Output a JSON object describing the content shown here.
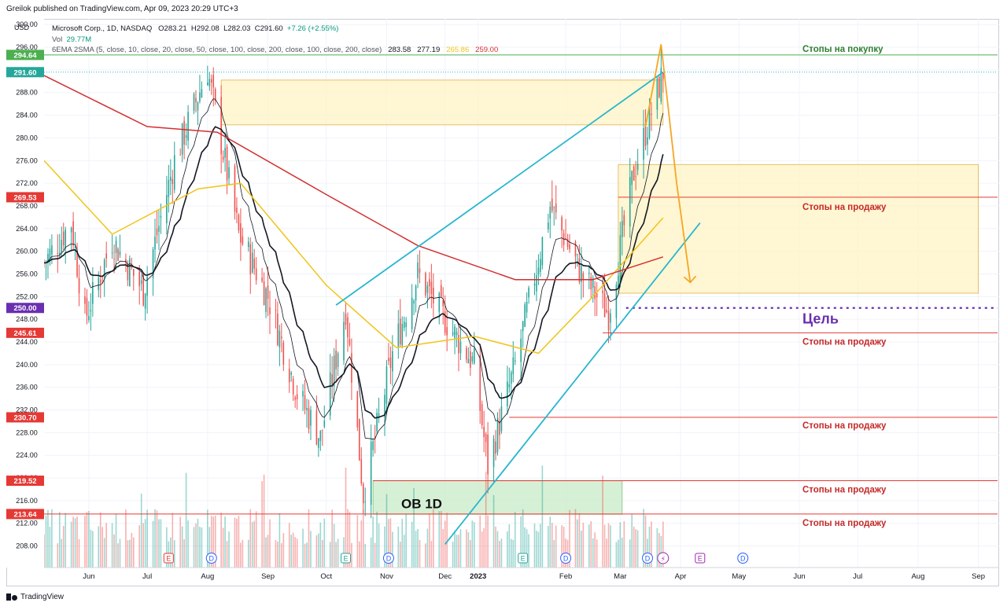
{
  "header": {
    "publisher": "Greilok published on TradingView.com, Apr 09, 2023 20:29 UTC+3"
  },
  "legend": {
    "currency": "USD",
    "symbol": "Microsoft Corp., 1D, NASDAQ",
    "ohlc": {
      "o": "O283.21",
      "h": "H292.08",
      "l": "L282.03",
      "c": "C291.60",
      "chg": "+7.26 (+2.55%)"
    },
    "vol_label": "Vol",
    "vol_value": "29.77M",
    "ma_label": "6EMA 2SMA (5, close, 10, close, 20, close, 50, close, 100, close, 200, close, 100, close, 200, close)",
    "ma_values": [
      "283.58",
      "277.19",
      "265.86",
      "259.00"
    ]
  },
  "brand": "TradingView",
  "colors": {
    "up": "#26a69a",
    "down": "#ef5350",
    "ema_fast": "#131722",
    "sma100": "#f0c419",
    "sma200": "#d32f2f",
    "channel": "#29b6cf",
    "arrow": "#f5a623",
    "target": "#6a2fb0",
    "buy_stop": "#4caf50",
    "sell_stop": "#e53935",
    "zone_yellow": "#fff3c4",
    "zone_green": "#c8ebc8"
  },
  "chart_data": {
    "type": "candlestick",
    "title": "Microsoft Corp., 1D, NASDAQ",
    "y_axis": {
      "ticks": [
        300,
        296,
        292,
        288,
        284,
        280,
        276,
        272,
        268,
        264,
        260,
        256,
        252,
        248,
        244,
        240,
        236,
        232,
        228,
        224,
        220,
        216,
        212,
        208
      ],
      "ylim": [
        206,
        301
      ]
    },
    "x_axis": {
      "labels": [
        "Jun",
        "Jul",
        "Aug",
        "Sep",
        "Oct",
        "Nov",
        "Dec",
        "2023",
        "Feb",
        "Mar",
        "Apr",
        "May",
        "Jun",
        "Jul",
        "Aug",
        "Sep"
      ]
    },
    "price_labels": [
      {
        "value": "294.64",
        "color": "#4caf50"
      },
      {
        "value": "291.60",
        "color": "#26a69a"
      },
      {
        "value": "269.53",
        "color": "#e53935"
      },
      {
        "value": "250.00",
        "color": "#6a2fb0"
      },
      {
        "value": "245.61",
        "color": "#e53935"
      },
      {
        "value": "230.70",
        "color": "#e53935"
      },
      {
        "value": "219.52",
        "color": "#e53935"
      },
      {
        "value": "213.64",
        "color": "#e53935"
      }
    ],
    "annotations": [
      {
        "text": "Стопы на покупку",
        "price": 294.64,
        "color": "#2e7d32"
      },
      {
        "text": "Стопы на продажу",
        "price": 269.53,
        "color": "#c62828"
      },
      {
        "text": "Цель",
        "price": 250.0,
        "color": "#6a2fb0"
      },
      {
        "text": "Стопы на продажу",
        "price": 245.61,
        "color": "#c62828"
      },
      {
        "text": "Стопы на продажу",
        "price": 230.7,
        "color": "#c62828"
      },
      {
        "text": "Стопы на продажу",
        "price": 219.52,
        "color": "#c62828"
      },
      {
        "text": "Стопы на продажу",
        "price": 213.64,
        "color": "#c62828"
      }
    ],
    "order_block_label": "OB 1D",
    "zones": [
      {
        "kind": "yellow",
        "from_date": "2022-08-22",
        "to_date": "2023-04-06",
        "top": 290.2,
        "bottom": 282.3
      },
      {
        "kind": "yellow",
        "from_date": "2023-03-14",
        "to_date": "2023-09-15",
        "top": 275.3,
        "bottom": 252.6
      },
      {
        "kind": "green",
        "from_date": "2022-11-08",
        "to_date": "2023-03-16",
        "top": 219.5,
        "bottom": 213.6
      }
    ],
    "events": [
      {
        "label": "E",
        "date": "2022-07-26",
        "type": "earnings"
      },
      {
        "label": "D",
        "date": "2022-08-17",
        "type": "dividend"
      },
      {
        "label": "E",
        "date": "2022-10-25",
        "type": "earnings"
      },
      {
        "label": "D",
        "date": "2022-11-16",
        "type": "dividend"
      },
      {
        "label": "E",
        "date": "2023-01-24",
        "type": "earnings"
      },
      {
        "label": "D",
        "date": "2023-02-15",
        "type": "dividend"
      },
      {
        "label": "D",
        "date": "2023-03-29",
        "type": "dividend"
      },
      {
        "label": "E",
        "date": "2023-04-25",
        "type": "earnings"
      },
      {
        "label": "D",
        "date": "2023-05-17",
        "type": "dividend"
      }
    ],
    "closes": [
      {
        "date": "2022-05-23",
        "close": 258
      },
      {
        "date": "2022-06-06",
        "close": 265
      },
      {
        "date": "2022-06-13",
        "close": 248
      },
      {
        "date": "2022-06-27",
        "close": 262
      },
      {
        "date": "2022-07-13",
        "close": 253
      },
      {
        "date": "2022-07-29",
        "close": 276
      },
      {
        "date": "2022-08-15",
        "close": 292
      },
      {
        "date": "2022-08-31",
        "close": 263
      },
      {
        "date": "2022-09-15",
        "close": 252
      },
      {
        "date": "2022-09-30",
        "close": 235
      },
      {
        "date": "2022-10-12",
        "close": 227
      },
      {
        "date": "2022-10-25",
        "close": 250
      },
      {
        "date": "2022-11-03",
        "close": 217
      },
      {
        "date": "2022-11-18",
        "close": 242
      },
      {
        "date": "2022-12-01",
        "close": 256
      },
      {
        "date": "2022-12-15",
        "close": 248
      },
      {
        "date": "2022-12-30",
        "close": 240
      },
      {
        "date": "2023-01-06",
        "close": 222
      },
      {
        "date": "2023-01-20",
        "close": 240
      },
      {
        "date": "2023-02-07",
        "close": 268
      },
      {
        "date": "2023-02-23",
        "close": 256
      },
      {
        "date": "2023-03-09",
        "close": 249
      },
      {
        "date": "2023-03-22",
        "close": 274
      },
      {
        "date": "2023-04-06",
        "close": 291.6
      }
    ],
    "sma100_points": [
      {
        "date": "2022-05-23",
        "value": 276
      },
      {
        "date": "2022-06-27",
        "value": 263
      },
      {
        "date": "2022-08-10",
        "value": 271
      },
      {
        "date": "2022-09-01",
        "value": 272
      },
      {
        "date": "2022-10-15",
        "value": 254
      },
      {
        "date": "2022-11-20",
        "value": 243
      },
      {
        "date": "2022-12-30",
        "value": 245
      },
      {
        "date": "2023-02-01",
        "value": 242
      },
      {
        "date": "2023-03-01",
        "value": 252
      },
      {
        "date": "2023-04-06",
        "value": 265.9
      }
    ],
    "sma200_points": [
      {
        "date": "2022-05-23",
        "value": 291
      },
      {
        "date": "2022-07-15",
        "value": 282
      },
      {
        "date": "2022-08-20",
        "value": 281
      },
      {
        "date": "2022-10-15",
        "value": 270
      },
      {
        "date": "2022-12-01",
        "value": 261
      },
      {
        "date": "2023-01-20",
        "value": 255
      },
      {
        "date": "2023-03-01",
        "value": 255
      },
      {
        "date": "2023-04-06",
        "value": 259.0
      }
    ],
    "channel_lines": [
      {
        "from": {
          "date": "2022-10-20",
          "price": 250.5
        },
        "to": {
          "date": "2023-04-06",
          "price": 291.6
        }
      },
      {
        "from": {
          "date": "2022-12-15",
          "price": 208.3
        },
        "to": {
          "date": "2023-04-25",
          "price": 265.0
        }
      }
    ],
    "arrow_path": [
      {
        "date": "2023-03-28",
        "price": 282.0
      },
      {
        "date": "2023-04-05",
        "price": 296.5
      },
      {
        "date": "2023-04-13",
        "price": 272.0
      },
      {
        "date": "2023-04-20",
        "price": 254.5
      }
    ]
  }
}
